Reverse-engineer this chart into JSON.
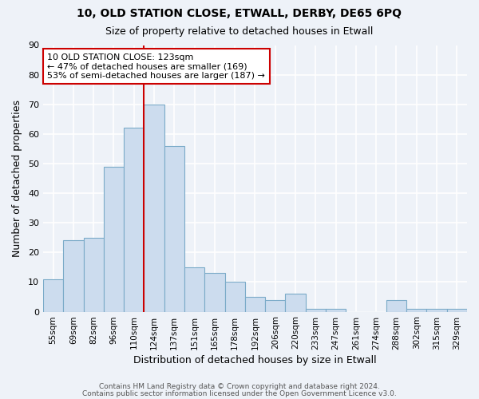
{
  "title1": "10, OLD STATION CLOSE, ETWALL, DERBY, DE65 6PQ",
  "title2": "Size of property relative to detached houses in Etwall",
  "xlabel": "Distribution of detached houses by size in Etwall",
  "ylabel": "Number of detached properties",
  "categories": [
    "55sqm",
    "69sqm",
    "82sqm",
    "96sqm",
    "110sqm",
    "124sqm",
    "137sqm",
    "151sqm",
    "165sqm",
    "178sqm",
    "192sqm",
    "206sqm",
    "220sqm",
    "233sqm",
    "247sqm",
    "261sqm",
    "274sqm",
    "288sqm",
    "302sqm",
    "315sqm",
    "329sqm"
  ],
  "values": [
    11,
    24,
    25,
    49,
    62,
    70,
    56,
    15,
    13,
    10,
    5,
    4,
    6,
    1,
    1,
    0,
    0,
    4,
    1,
    1,
    1
  ],
  "bar_color": "#ccdcee",
  "bar_edge_color": "#7aaac8",
  "redline_index": 5,
  "annotation_line1": "10 OLD STATION CLOSE: 123sqm",
  "annotation_line2": "← 47% of detached houses are smaller (169)",
  "annotation_line3": "53% of semi-detached houses are larger (187) →",
  "annotation_box_color": "white",
  "annotation_box_edge_color": "#cc0000",
  "redline_color": "#cc0000",
  "ylim": [
    0,
    90
  ],
  "yticks": [
    0,
    10,
    20,
    30,
    40,
    50,
    60,
    70,
    80,
    90
  ],
  "footer_line1": "Contains HM Land Registry data © Crown copyright and database right 2024.",
  "footer_line2": "Contains public sector information licensed under the Open Government Licence v3.0.",
  "background_color": "#eef2f8",
  "grid_color": "#ffffff"
}
